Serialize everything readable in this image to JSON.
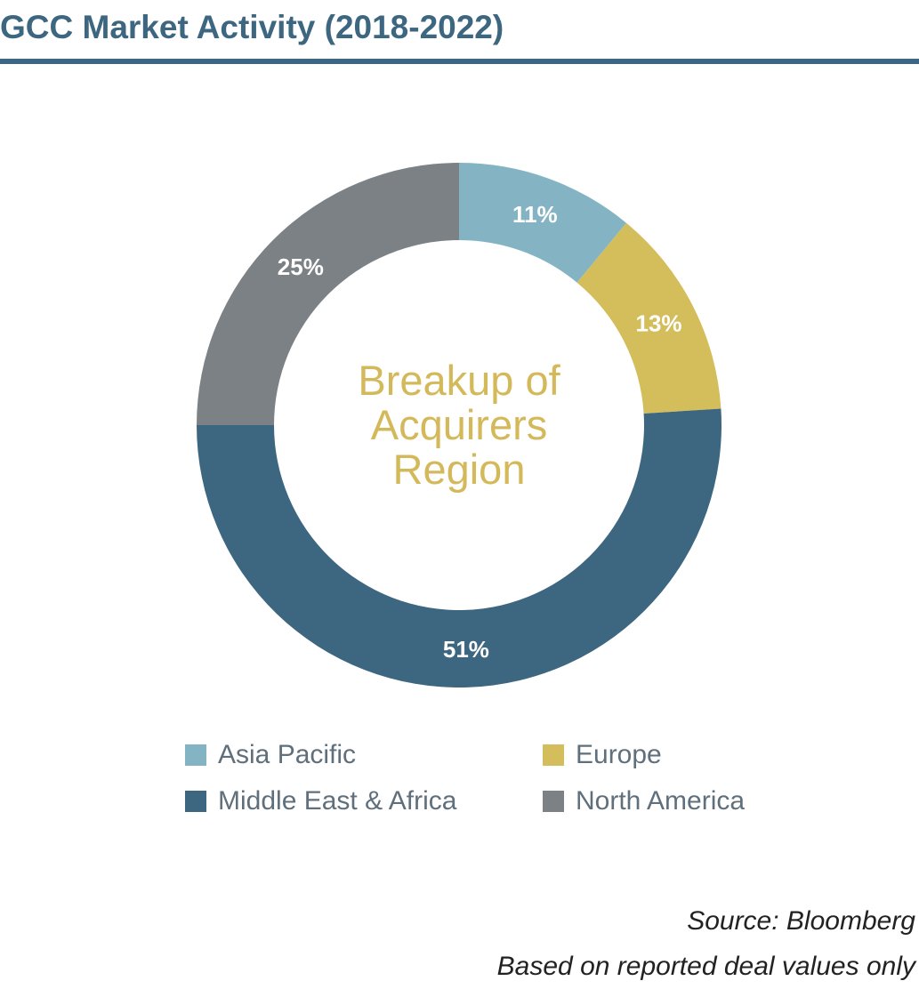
{
  "title": "GCC Market Activity (2018-2022)",
  "colors": {
    "title": "#3d6680",
    "center_text": "#d4b95a",
    "legend_text": "#5f6f7c"
  },
  "chart_data": {
    "type": "pie",
    "donut": true,
    "center_text": [
      "Breakup of",
      "Acquirers",
      "Region"
    ],
    "start_angle_deg": 0,
    "direction": "clockwise",
    "slices": [
      {
        "name": "Asia Pacific",
        "value": 11,
        "label": "11%",
        "color": "#84b4c4"
      },
      {
        "name": "Europe",
        "value": 13,
        "label": "13%",
        "color": "#d4bd5b"
      },
      {
        "name": "Middle East & Africa",
        "value": 51,
        "label": "51%",
        "color": "#3d6680"
      },
      {
        "name": "North America",
        "value": 25,
        "label": "25%",
        "color": "#7c8185"
      }
    ],
    "legend": [
      {
        "label": "Asia Pacific",
        "color": "#84b4c4"
      },
      {
        "label": "Europe",
        "color": "#d4bd5b"
      },
      {
        "label": "Middle East & Africa",
        "color": "#3d6680"
      },
      {
        "label": "North America",
        "color": "#7c8185"
      }
    ],
    "legend_position": "bottom"
  },
  "notes": {
    "source": "Source: Bloomberg",
    "basis": "Based on reported deal values only"
  }
}
